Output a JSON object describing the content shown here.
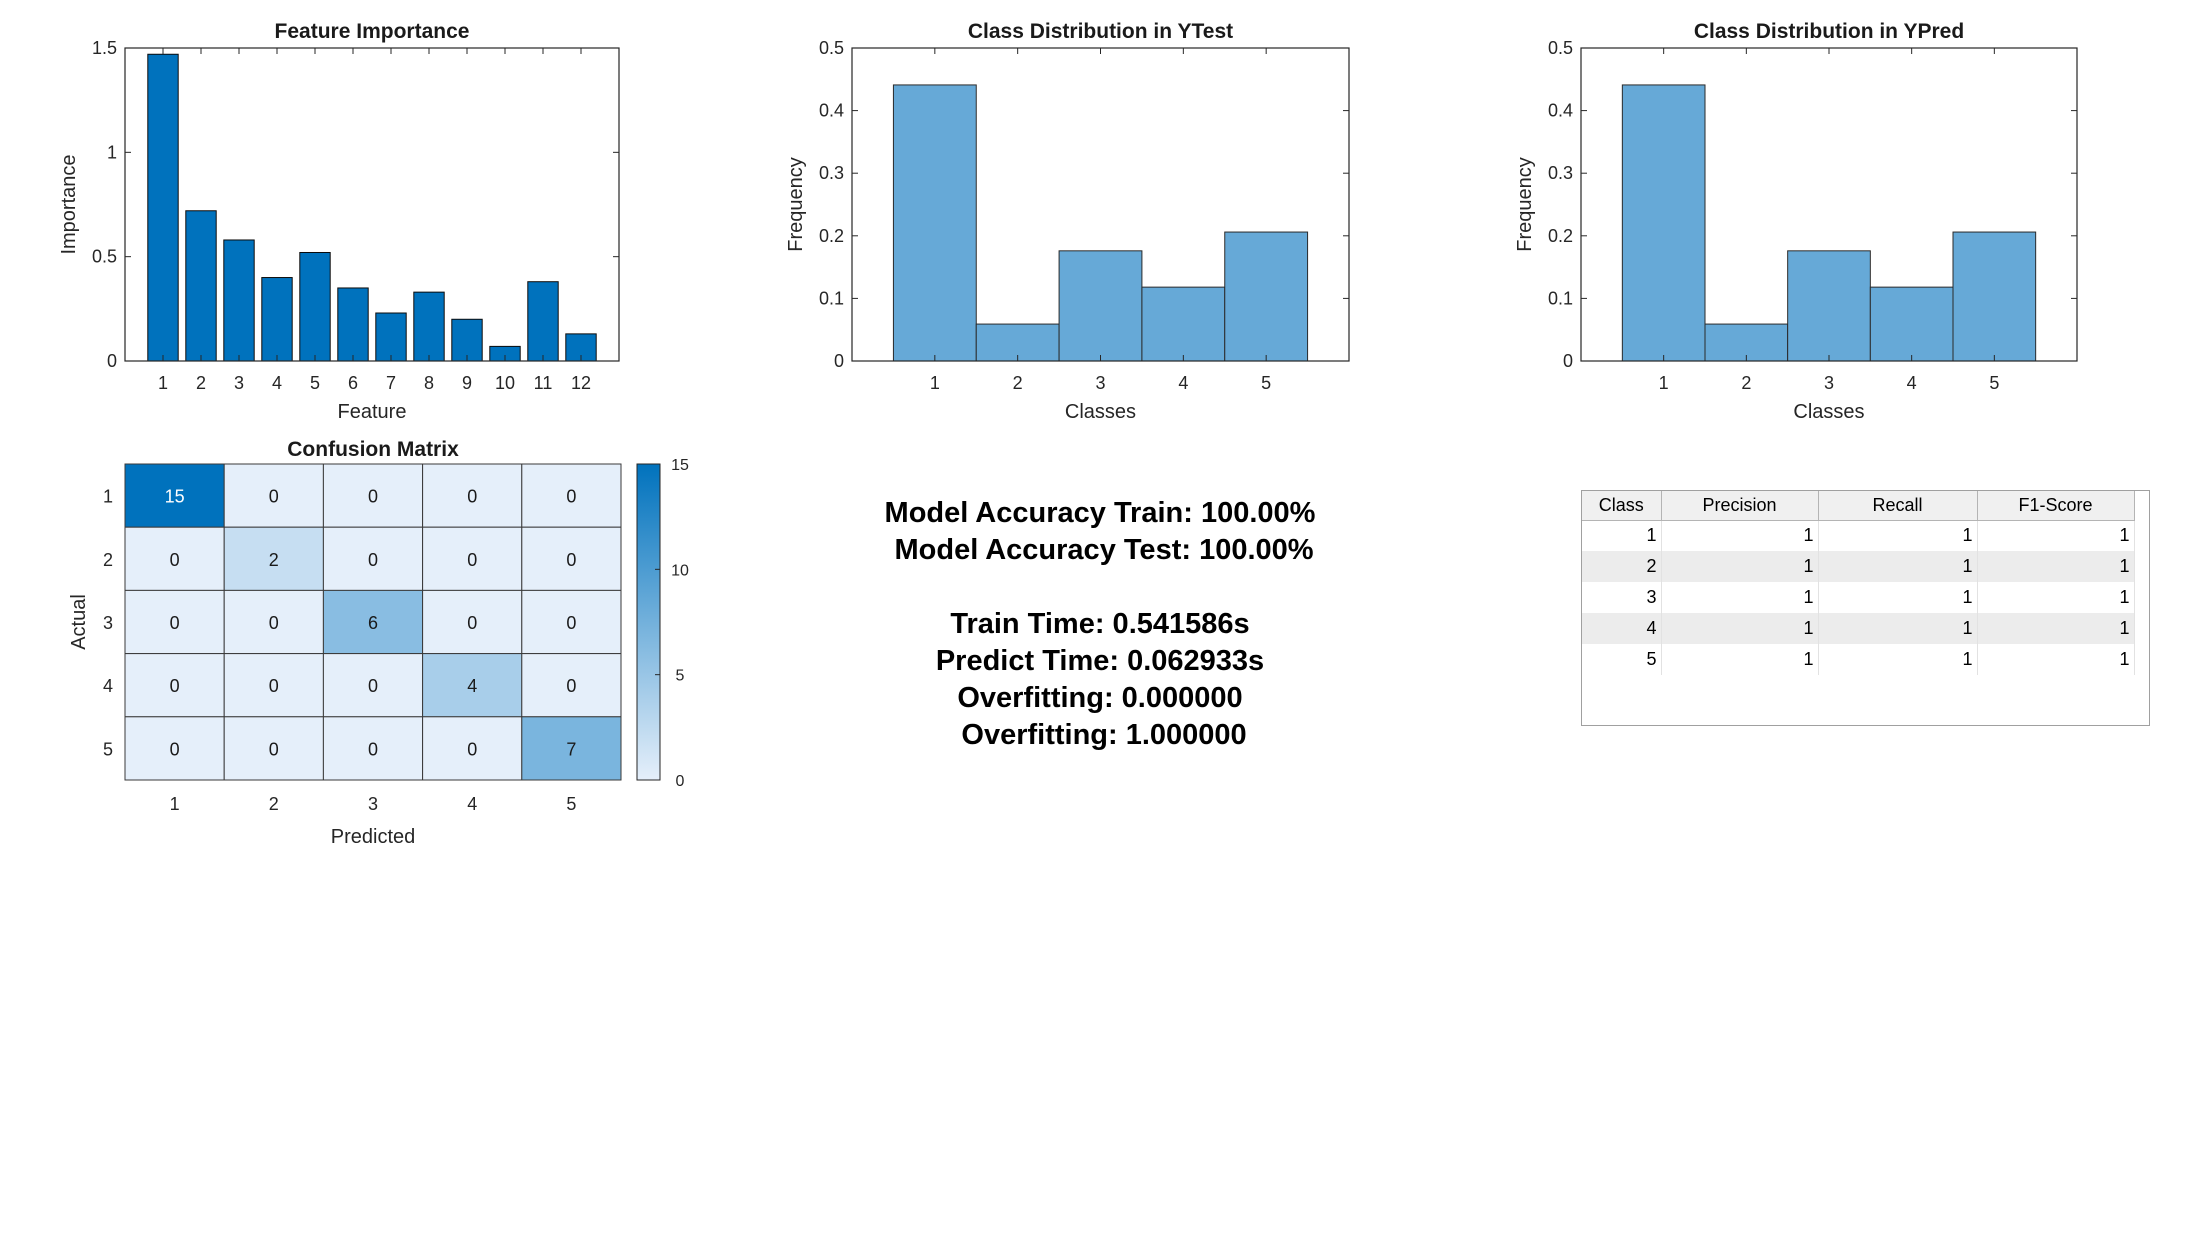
{
  "chart_data": [
    {
      "type": "bar",
      "title": "Feature Importance",
      "xlabel": "Feature",
      "ylabel": "Importance",
      "categories": [
        "1",
        "2",
        "3",
        "4",
        "5",
        "6",
        "7",
        "8",
        "9",
        "10",
        "11",
        "12"
      ],
      "values": [
        1.47,
        0.72,
        0.58,
        0.4,
        0.52,
        0.35,
        0.23,
        0.33,
        0.2,
        0.07,
        0.38,
        0.13
      ],
      "ylim": [
        0,
        1.5
      ],
      "yticks": [
        "0",
        "0.5",
        "1",
        "1.5"
      ],
      "color": "#0072bd"
    },
    {
      "type": "bar",
      "title": "Class Distribution in YTest",
      "xlabel": "Classes",
      "ylabel": "Frequency",
      "categories": [
        "1",
        "2",
        "3",
        "4",
        "5"
      ],
      "values": [
        0.441,
        0.059,
        0.176,
        0.118,
        0.206
      ],
      "ylim": [
        0,
        0.5
      ],
      "yticks": [
        "0",
        "0.1",
        "0.2",
        "0.3",
        "0.4",
        "0.5"
      ],
      "color": "#66a9d7"
    },
    {
      "type": "bar",
      "title": "Class Distribution in YPred",
      "xlabel": "Classes",
      "ylabel": "Frequency",
      "categories": [
        "1",
        "2",
        "3",
        "4",
        "5"
      ],
      "values": [
        0.441,
        0.059,
        0.176,
        0.118,
        0.206
      ],
      "ylim": [
        0,
        0.5
      ],
      "yticks": [
        "0",
        "0.1",
        "0.2",
        "0.3",
        "0.4",
        "0.5"
      ],
      "color": "#66a9d7"
    },
    {
      "type": "heatmap",
      "title": "Confusion Matrix",
      "xlabel": "Predicted",
      "ylabel": "Actual",
      "x": [
        "1",
        "2",
        "3",
        "4",
        "5"
      ],
      "y": [
        "1",
        "2",
        "3",
        "4",
        "5"
      ],
      "values": [
        [
          15,
          0,
          0,
          0,
          0
        ],
        [
          0,
          2,
          0,
          0,
          0
        ],
        [
          0,
          0,
          6,
          0,
          0
        ],
        [
          0,
          0,
          0,
          4,
          0
        ],
        [
          0,
          0,
          0,
          0,
          7
        ]
      ],
      "colorbar_ticks": [
        "0",
        "5",
        "10",
        "15"
      ],
      "colorbar_range": [
        0,
        15
      ]
    }
  ],
  "stats": {
    "lines": [
      "Model Accuracy Train: 100.00%",
      " Model Accuracy Test: 100.00%",
      "Train Time: 0.541586s",
      "Predict Time: 0.062933s",
      "Overfitting: 0.000000",
      " Overfitting: 1.000000"
    ]
  },
  "metrics_table": {
    "headers": [
      "Class",
      "Precision",
      "Recall",
      "F1-Score"
    ],
    "rows": [
      [
        "1",
        "1",
        "1",
        "1"
      ],
      [
        "2",
        "1",
        "1",
        "1"
      ],
      [
        "3",
        "1",
        "1",
        "1"
      ],
      [
        "4",
        "1",
        "1",
        "1"
      ],
      [
        "5",
        "1",
        "1",
        "1"
      ]
    ]
  }
}
